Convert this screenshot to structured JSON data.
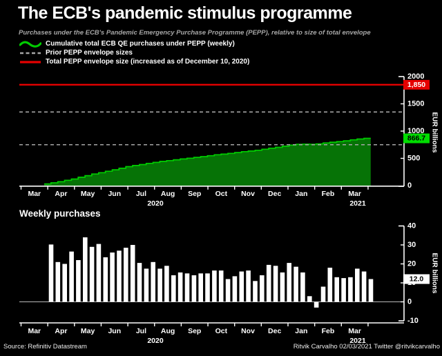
{
  "title": "The ECB's pandemic stimulus programme",
  "subtitle": "Purchases under the ECB's Pandemic Emergency Purchase Programme (PEPP), relative to size of total envelope",
  "legend": [
    {
      "swatch": "green-wavy-line",
      "label": "Cumulative total ECB QE purchases under PEPP (weekly)"
    },
    {
      "swatch": "grey-dashed-line",
      "label": "Prior PEPP envelope sizes"
    },
    {
      "swatch": "red-line",
      "label": "Total PEPP envelope size (increased as of December 10, 2020)"
    }
  ],
  "footer": {
    "source": "Source: Refinitiv Datastream",
    "credit": "Ritvik Carvalho 02/03/2021 Twitter @ritvikcarvalho"
  },
  "colors": {
    "background": "#000000",
    "green_line": "#00cc00",
    "green_fill": "#067306",
    "red_line": "#e60000",
    "dashed_grey": "#a6a6a6",
    "bar_white": "#ffffff",
    "axis_white": "#ffffff",
    "zero_line_grey": "#bbbbbb",
    "badge_red_bg": "#e60000",
    "badge_red_text": "#ffffff",
    "badge_green_bg": "#00dd00",
    "badge_green_text": "#000000",
    "badge_white_bg": "#ffffff",
    "badge_white_text": "#000000"
  },
  "chart_data": [
    {
      "type": "area",
      "title": "",
      "ylabel": "EUR billions",
      "ylim": [
        0,
        2000
      ],
      "yticks": [
        0,
        500,
        1000,
        1500,
        2000
      ],
      "months": [
        "Mar",
        "Apr",
        "May",
        "Jun",
        "Jul",
        "Aug",
        "Sep",
        "Oct",
        "Nov",
        "Dec",
        "Jan",
        "Feb",
        "Mar"
      ],
      "year_labels": [
        "2020",
        "2021"
      ],
      "grid": false,
      "legend_position": "top-left",
      "reference_lines": [
        {
          "value": 750,
          "style": "dashed",
          "label": ""
        },
        {
          "value": 1350,
          "style": "dashed",
          "label": ""
        },
        {
          "value": 1850,
          "style": "solid-red",
          "label": "1,850"
        }
      ],
      "end_value_label": "866.7",
      "series": [
        {
          "name": "Cumulative total ECB QE purchases under PEPP (weekly)",
          "values": [
            30.2,
            51.2,
            71.2,
            97.7,
            119.7,
            153.7,
            182.7,
            213.2,
            236.7,
            262.7,
            289.7,
            318.2,
            348.2,
            368.7,
            386.2,
            407.2,
            424.7,
            443.7,
            457.7,
            473.2,
            488.2,
            502.2,
            517.2,
            532.2,
            548.7,
            565.2,
            577.2,
            590.7,
            606.7,
            623.2,
            634.2,
            648.2,
            667.7,
            686.7,
            702.2,
            722.7,
            741.2,
            756.7,
            759.7,
            756.7,
            764.7,
            782.7,
            795.7,
            808.2,
            821.2,
            838.7,
            854.7,
            866.7
          ]
        }
      ]
    },
    {
      "type": "bar",
      "title": "Weekly purchases",
      "ylabel": "EUR billions",
      "ylim": [
        -10,
        40
      ],
      "yticks": [
        -10,
        0,
        10,
        20,
        30,
        40
      ],
      "months": [
        "Mar",
        "Apr",
        "May",
        "Jun",
        "Jul",
        "Aug",
        "Sep",
        "Oct",
        "Nov",
        "Dec",
        "Jan",
        "Feb",
        "Mar"
      ],
      "year_labels": [
        "2020",
        "2021"
      ],
      "grid": false,
      "end_value_label": "12.0",
      "values": [
        30.2,
        21,
        20,
        26.5,
        22,
        34,
        29,
        30.5,
        23.5,
        26,
        27,
        28.5,
        30,
        20.5,
        17.5,
        21,
        17.5,
        19,
        14,
        15.5,
        15,
        14,
        15,
        15,
        16.5,
        16.5,
        12,
        13.5,
        16,
        16.5,
        11,
        14,
        19.5,
        19,
        15.5,
        20.5,
        18.5,
        15.5,
        3,
        -3,
        8,
        18,
        13,
        12.5,
        13,
        17.5,
        16,
        12
      ]
    }
  ]
}
